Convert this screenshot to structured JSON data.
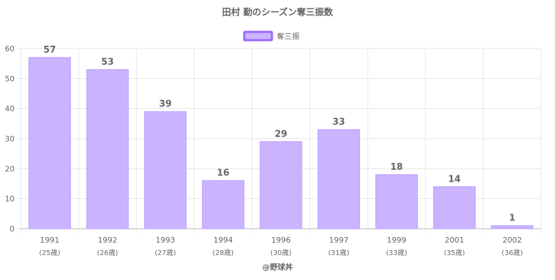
{
  "chart_data": {
    "type": "bar",
    "title": "田村 勤のシーズン奪三振数",
    "categories": [
      "1991",
      "1992",
      "1993",
      "1994",
      "1996",
      "1997",
      "1999",
      "2001",
      "2002"
    ],
    "category_sublabels": [
      "(25歳)",
      "(26歳)",
      "(27歳)",
      "(28歳)",
      "(30歳)",
      "(31歳)",
      "(33歳)",
      "(35歳)",
      "(36歳)"
    ],
    "series": [
      {
        "name": "奪三振",
        "values": [
          57,
          53,
          39,
          16,
          29,
          33,
          18,
          14,
          1
        ]
      }
    ],
    "ylim": [
      0,
      60
    ],
    "yticks": [
      0,
      10,
      20,
      30,
      40,
      50,
      60
    ],
    "grid": true,
    "legend_position": "top-center",
    "show_data_labels": true,
    "credit": "@野球丼",
    "colors": {
      "bar_fill": "#cbb4ff",
      "bar_stroke": "#b799ff",
      "legend_stroke": "#9966ff",
      "text": "#666666",
      "grid": "#e6e6e6",
      "axis": "#b3b3b3"
    }
  }
}
